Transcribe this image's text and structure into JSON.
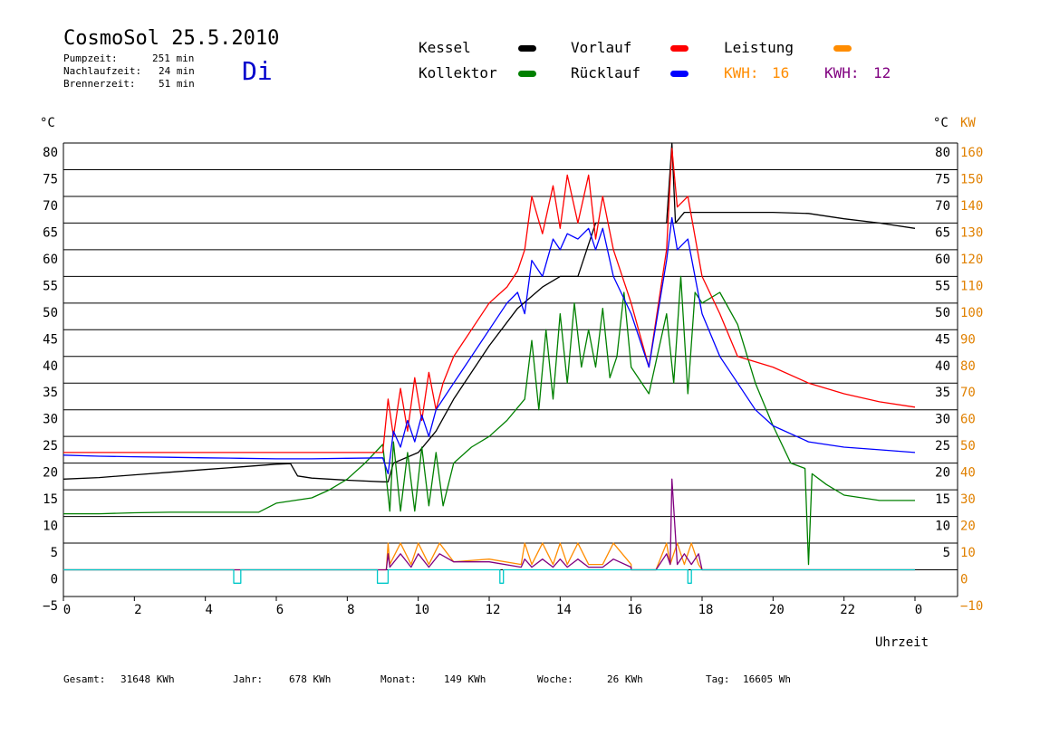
{
  "header": {
    "title": "CosmoSol 25.5.2010",
    "stats": [
      {
        "label": "Pumpzeit:",
        "value": "251 min"
      },
      {
        "label": "Nachlaufzeit:",
        "value": "24 min"
      },
      {
        "label": "Brennerzeit:",
        "value": "51 min"
      }
    ],
    "day": "Di"
  },
  "legend": {
    "items": [
      {
        "label": "Kessel",
        "color": "#000000"
      },
      {
        "label": "Kollektor",
        "color": "#008000"
      },
      {
        "label": "Vorlauf",
        "color": "#ff0000"
      },
      {
        "label": "Rücklauf",
        "color": "#0000ff"
      },
      {
        "label": "Leistung",
        "color": "#ff8c00"
      }
    ],
    "kwh": [
      {
        "label": "KWH:",
        "value": "16",
        "color": "#ff8c00"
      },
      {
        "label": "KWH:",
        "value": "12",
        "color": "#800080"
      }
    ]
  },
  "footer": {
    "gesamt": {
      "label": "Gesamt:",
      "value": "31648 KWh"
    },
    "jahr": {
      "label": "Jahr:",
      "value": "678 KWh"
    },
    "monat": {
      "label": "Monat:",
      "value": "149 KWh"
    },
    "woche": {
      "label": "Woche:",
      "value": "26 KWh"
    },
    "tag": {
      "label": "Tag:",
      "value": "16605 Wh"
    }
  },
  "chart_data": {
    "type": "line",
    "xlabel": "Uhrzeit",
    "xlim": [
      0,
      24
    ],
    "ylim": [
      -5,
      80
    ],
    "y2lim": [
      -10,
      160
    ],
    "x_ticks": [
      "0",
      "2",
      "4",
      "6",
      "8",
      "10",
      "12",
      "14",
      "16",
      "18",
      "20",
      "22",
      "0"
    ],
    "y_unit_left": "°C",
    "y_unit_right": "°C",
    "y2_unit": "KW",
    "y_ticks_left": [
      "80",
      "75",
      "70",
      "65",
      "60",
      "55",
      "50",
      "45",
      "40",
      "35",
      "30",
      "25",
      "20",
      "15",
      "10",
      "5",
      "0",
      "−5"
    ],
    "y_ticks_right": [
      "80",
      "75",
      "70",
      "65",
      "60",
      "55",
      "50",
      "45",
      "40",
      "35",
      "30",
      "25",
      "20",
      "15",
      "10",
      "5"
    ],
    "y2_ticks": [
      "160",
      "150",
      "140",
      "130",
      "120",
      "110",
      "100",
      "90",
      "80",
      "70",
      "60",
      "50",
      "40",
      "30",
      "20",
      "10",
      "0",
      "−10"
    ],
    "grid": true,
    "series": [
      {
        "name": "Kessel",
        "color": "#000000",
        "x": [
          0,
          1,
          2,
          3,
          4,
          5,
          6,
          6.4,
          6.6,
          7,
          8,
          9,
          9.15,
          9.3,
          10,
          10.5,
          11,
          12,
          12.8,
          13.5,
          14,
          14.5,
          15,
          15.2,
          16,
          16.5,
          17,
          17.15,
          17.25,
          17.5,
          18,
          19,
          20,
          21,
          22,
          23,
          24
        ],
        "y": [
          17,
          17.3,
          17.8,
          18.3,
          18.8,
          19.3,
          19.8,
          19.9,
          17.6,
          17.2,
          16.8,
          16.5,
          16.5,
          20,
          22,
          26,
          32,
          42,
          49,
          53,
          55,
          55,
          65,
          65,
          65,
          65,
          65,
          80,
          65,
          67,
          67,
          67,
          67,
          66.8,
          65.8,
          65,
          64
        ]
      },
      {
        "name": "Kollektor",
        "color": "#008000",
        "x": [
          0,
          1,
          2,
          3,
          4,
          5,
          5.5,
          6,
          7,
          7.5,
          8,
          8.5,
          9,
          9.2,
          9.3,
          9.5,
          9.7,
          9.9,
          10.1,
          10.3,
          10.5,
          10.7,
          11,
          11.5,
          12,
          12.5,
          13,
          13.2,
          13.4,
          13.6,
          13.8,
          14,
          14.2,
          14.4,
          14.6,
          14.8,
          15,
          15.2,
          15.4,
          15.6,
          15.8,
          16,
          16.5,
          17,
          17.2,
          17.4,
          17.6,
          17.8,
          18,
          18.5,
          19,
          19.5,
          20,
          20.5,
          20.9,
          21,
          21.1,
          21.5,
          22,
          23,
          24
        ],
        "y": [
          10.5,
          10.5,
          10.7,
          10.8,
          10.8,
          10.8,
          10.8,
          12.5,
          13.5,
          15,
          17,
          20,
          23.5,
          11,
          24,
          11,
          22,
          11,
          23,
          12,
          22,
          12,
          20,
          23,
          25,
          28,
          32,
          43,
          30,
          45,
          32,
          48,
          35,
          50,
          38,
          45,
          38,
          49,
          36,
          40,
          52,
          38,
          33,
          48,
          35,
          55,
          33,
          52,
          50,
          52,
          46,
          35,
          27,
          20,
          19,
          1,
          18,
          16,
          14,
          13,
          13
        ]
      },
      {
        "name": "Vorlauf",
        "color": "#ff0000",
        "x": [
          0,
          1,
          2,
          3,
          4,
          5,
          6,
          7,
          8,
          9,
          9.15,
          9.3,
          9.5,
          9.7,
          9.9,
          10.1,
          10.3,
          10.5,
          10.7,
          11,
          11.5,
          12,
          12.5,
          12.8,
          13,
          13.2,
          13.5,
          13.8,
          14,
          14.2,
          14.5,
          14.8,
          15,
          15.2,
          15.5,
          16,
          16.5,
          17,
          17.15,
          17.3,
          17.6,
          18,
          18.5,
          19,
          20,
          21,
          22,
          23,
          24
        ],
        "y": [
          22,
          22,
          22,
          22,
          22,
          22,
          22,
          22,
          22,
          22,
          32,
          25,
          34,
          26,
          36,
          28,
          37,
          30,
          35,
          40,
          45,
          50,
          53,
          56,
          60,
          70,
          63,
          72,
          64,
          74,
          65,
          74,
          62,
          70,
          60,
          50,
          38,
          60,
          79,
          68,
          70,
          55,
          48,
          40,
          38,
          35,
          33,
          31.5,
          30.5
        ]
      },
      {
        "name": "Rücklauf",
        "color": "#0000ff",
        "x": [
          0,
          1,
          2,
          3,
          4,
          5,
          6,
          7,
          8,
          9,
          9.15,
          9.3,
          9.5,
          9.7,
          9.9,
          10.1,
          10.3,
          10.5,
          10.7,
          11,
          11.5,
          12,
          12.5,
          12.8,
          13,
          13.2,
          13.5,
          13.8,
          14,
          14.2,
          14.5,
          14.8,
          15,
          15.2,
          15.5,
          16,
          16.5,
          17,
          17.15,
          17.3,
          17.6,
          18,
          18.5,
          19,
          19.5,
          20,
          21,
          22,
          23,
          24
        ],
        "y": [
          21.5,
          21.3,
          21.2,
          21.1,
          21,
          20.9,
          20.8,
          20.8,
          20.9,
          21,
          18,
          26,
          23,
          28,
          24,
          29,
          25,
          30,
          32,
          35,
          40,
          45,
          50,
          52,
          48,
          58,
          55,
          62,
          60,
          63,
          62,
          64,
          60,
          64,
          55,
          48,
          38,
          58,
          66,
          60,
          62,
          48,
          40,
          35,
          30,
          27,
          24,
          23,
          22.5,
          22
        ]
      },
      {
        "name": "Leistung",
        "color": "#ff8c00",
        "x": [
          0,
          9.1,
          9.15,
          9.2,
          9.5,
          9.8,
          10,
          10.3,
          10.6,
          11,
          12,
          12.9,
          13,
          13.2,
          13.5,
          13.8,
          14,
          14.2,
          14.5,
          14.8,
          15.2,
          15.5,
          16,
          16,
          16.7,
          17,
          17.1,
          17.3,
          17.5,
          17.7,
          17.9,
          18,
          24
        ],
        "y": [
          0,
          0,
          5,
          1,
          5,
          1,
          5,
          1,
          5,
          1.5,
          2,
          1,
          5,
          1,
          5,
          1,
          5,
          1,
          5,
          1,
          1,
          5,
          1,
          0,
          0,
          5,
          1,
          5,
          1,
          5,
          1,
          0,
          0
        ]
      },
      {
        "name": "Leistung KWH",
        "color": "#800080",
        "x": [
          0,
          9.1,
          9.15,
          9.2,
          9.5,
          9.8,
          10,
          10.3,
          10.6,
          11,
          12,
          12.9,
          13,
          13.2,
          13.5,
          13.8,
          14,
          14.2,
          14.5,
          14.8,
          15.2,
          15.5,
          16,
          16,
          16.7,
          17,
          17.1,
          17.15,
          17.3,
          17.5,
          17.7,
          17.9,
          18,
          24
        ],
        "y": [
          0,
          0,
          3,
          0.5,
          3,
          0.5,
          3,
          0.5,
          3,
          1.5,
          1.5,
          0.5,
          2,
          0.5,
          2,
          0.5,
          2,
          0.5,
          2,
          0.5,
          0.5,
          2,
          0.5,
          0,
          0,
          3,
          1,
          17,
          1,
          3,
          1,
          3,
          0,
          0
        ]
      },
      {
        "name": "Pumpe",
        "color": "#00c8c8",
        "x": [
          0,
          4.8,
          4.8,
          5.0,
          5.0,
          8.85,
          8.85,
          9.15,
          9.15,
          12.3,
          12.3,
          12.4,
          12.4,
          17.6,
          17.6,
          17.7,
          17.7,
          24
        ],
        "y": [
          0,
          0,
          -2.5,
          -2.5,
          0,
          0,
          -2.5,
          -2.5,
          0,
          0,
          -2.5,
          -2.5,
          0,
          0,
          -2.5,
          -2.5,
          0,
          0
        ]
      }
    ]
  }
}
